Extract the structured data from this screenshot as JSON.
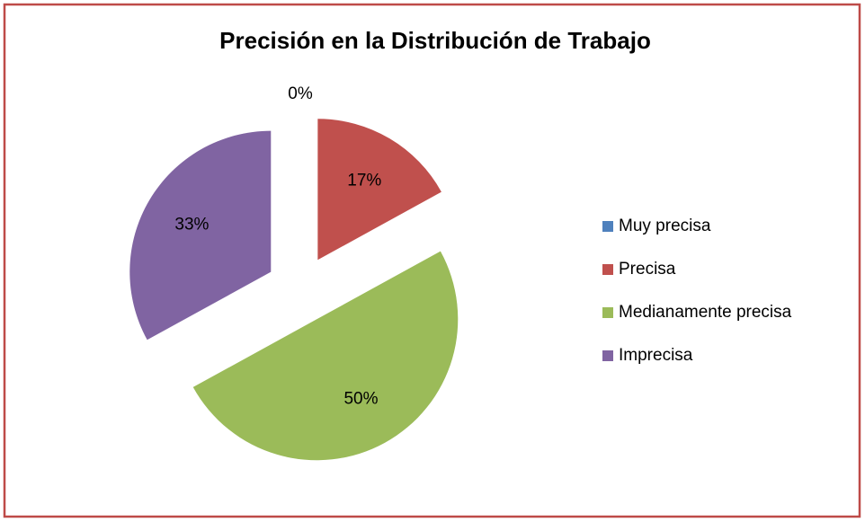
{
  "chart_data": {
    "type": "pie",
    "title": "Precisión en la Distribución de Trabajo",
    "categories": [
      "Muy precisa",
      "Precisa",
      "Medianamente precisa",
      "Imprecisa"
    ],
    "values": [
      0,
      17,
      50,
      33
    ],
    "value_labels": [
      "0%",
      "17%",
      "50%",
      "33%"
    ],
    "colors": [
      "#4f81bd",
      "#c0504d",
      "#9bbb59",
      "#8064a2"
    ],
    "legend": "right"
  }
}
